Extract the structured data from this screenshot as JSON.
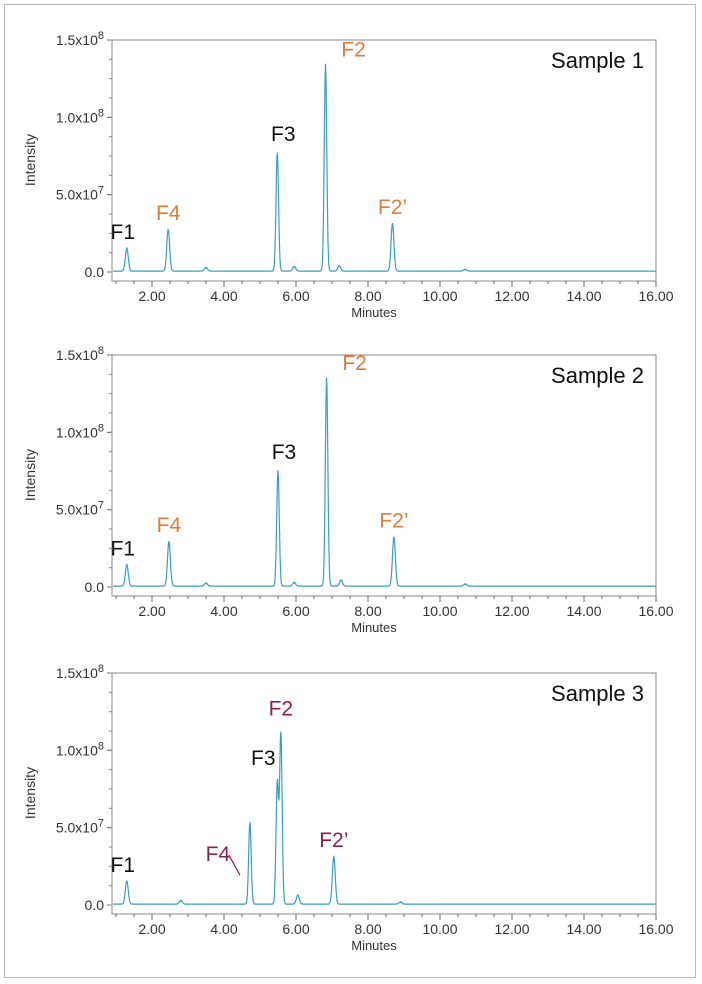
{
  "chart_data": [
    {
      "type": "line",
      "title": "Sample 1",
      "xlabel": "Minutes",
      "ylabel": "Intensity",
      "xlim": [
        0.9,
        16
      ],
      "ylim": [
        0,
        150000000
      ],
      "xticks": [
        "2.00",
        "4.00",
        "6.00",
        "8.00",
        "10.00",
        "12.00",
        "14.00",
        "16.00"
      ],
      "yticks": [
        "0.0",
        "5.0x10^7",
        "1.0x10^8",
        "1.5x10^8"
      ],
      "line_color": "#3a9fbf",
      "peaks": [
        {
          "x": 1.3,
          "y": 15000000,
          "label": "F1",
          "color": "#111111"
        },
        {
          "x": 2.45,
          "y": 27000000,
          "label": "F4",
          "color": "#e07b39"
        },
        {
          "x": 3.5,
          "y": 2500000
        },
        {
          "x": 5.48,
          "y": 77000000,
          "label": "F3",
          "color": "#111111"
        },
        {
          "x": 5.95,
          "y": 3000000
        },
        {
          "x": 6.82,
          "y": 134000000,
          "label": "F2",
          "color": "#e07b39"
        },
        {
          "x": 7.2,
          "y": 3500000
        },
        {
          "x": 8.68,
          "y": 31000000,
          "label": "F2’",
          "color": "#e07b39"
        },
        {
          "x": 10.7,
          "y": 1200000
        }
      ]
    },
    {
      "type": "line",
      "title": "Sample 2",
      "xlabel": "Minutes",
      "ylabel": "Intensity",
      "xlim": [
        0.9,
        16
      ],
      "ylim": [
        0,
        150000000
      ],
      "xticks": [
        "2.00",
        "4.00",
        "6.00",
        "8.00",
        "10.00",
        "12.00",
        "14.00",
        "16.00"
      ],
      "yticks": [
        "0.0",
        "5.0x10^7",
        "1.0x10^8",
        "1.5x10^8"
      ],
      "line_color": "#3a9fbf",
      "peaks": [
        {
          "x": 1.3,
          "y": 14000000,
          "label": "F1",
          "color": "#111111"
        },
        {
          "x": 2.47,
          "y": 29000000,
          "label": "F4",
          "color": "#e07b39"
        },
        {
          "x": 3.5,
          "y": 2000000
        },
        {
          "x": 5.5,
          "y": 75000000,
          "label": "F3",
          "color": "#111111"
        },
        {
          "x": 5.95,
          "y": 2500000
        },
        {
          "x": 6.85,
          "y": 135000000,
          "label": "F2",
          "color": "#e07b39"
        },
        {
          "x": 7.25,
          "y": 4000000
        },
        {
          "x": 8.72,
          "y": 32000000,
          "label": "F2’",
          "color": "#e07b39"
        },
        {
          "x": 10.7,
          "y": 1500000
        }
      ]
    },
    {
      "type": "line",
      "title": "Sample 3",
      "xlabel": "Minutes",
      "ylabel": "Intensity",
      "xlim": [
        0.9,
        16
      ],
      "ylim": [
        0,
        150000000
      ],
      "xticks": [
        "2.00",
        "4.00",
        "6.00",
        "8.00",
        "10.00",
        "12.00",
        "14.00",
        "16.00"
      ],
      "yticks": [
        "0.0",
        "5.0x10^7",
        "1.0x10^8",
        "1.5x10^8"
      ],
      "line_color": "#3a9fbf",
      "peaks": [
        {
          "x": 1.3,
          "y": 15000000,
          "label": "F1",
          "color": "#111111"
        },
        {
          "x": 2.8,
          "y": 2500000
        },
        {
          "x": 4.72,
          "y": 53000000,
          "label": "F4",
          "color": "#8b2252"
        },
        {
          "x": 5.48,
          "y": 79000000,
          "label": "F3",
          "color": "#111111"
        },
        {
          "x": 5.58,
          "y": 111000000,
          "label": "F2",
          "color": "#8b2252"
        },
        {
          "x": 6.05,
          "y": 6000000
        },
        {
          "x": 7.05,
          "y": 31000000,
          "label": "F2’",
          "color": "#8b2252"
        },
        {
          "x": 8.9,
          "y": 1500000
        }
      ]
    }
  ]
}
